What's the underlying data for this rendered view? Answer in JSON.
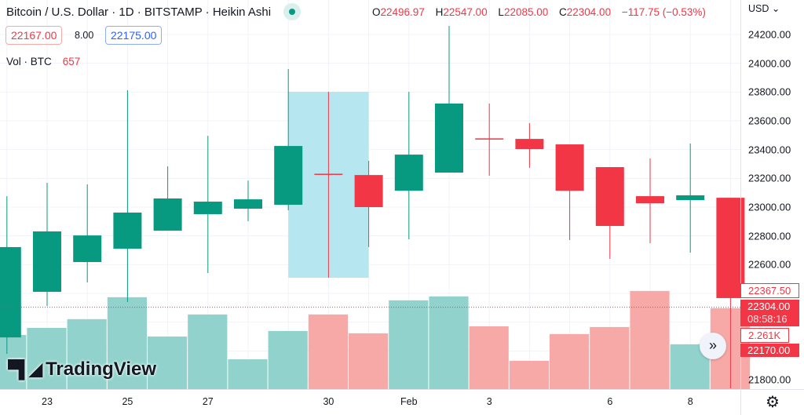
{
  "header": {
    "title": "Bitcoin / U.S. Dollar · 1D · BITSTAMP · Heikin Ashi",
    "ohlc": {
      "o_label": "O",
      "o": "22496.97",
      "h_label": "H",
      "h": "22547.00",
      "l_label": "L",
      "l": "22085.00",
      "c_label": "C",
      "c": "22304.00",
      "change": "−117.75 (−0.53%)"
    },
    "sell_price": "22167.00",
    "spread": "8.00",
    "buy_price": "22175.00",
    "volume_label": "Vol · BTC",
    "volume_value": "657",
    "currency": "USD"
  },
  "price_axis": {
    "ticks": [
      "24200.00",
      "24000.00",
      "23800.00",
      "23600.00",
      "23400.00",
      "23200.00",
      "23000.00",
      "22800.00",
      "22600.00",
      "21800.00"
    ],
    "tags": {
      "last_open": "22367.50",
      "last_price": "22304.00",
      "countdown": "08:58:16",
      "volume": "2.261K",
      "bid": "22170.00"
    }
  },
  "time_axis": {
    "ticks": [
      {
        "label": "23",
        "index": 1
      },
      {
        "label": "25",
        "index": 3
      },
      {
        "label": "27",
        "index": 5
      },
      {
        "label": "30",
        "index": 8
      },
      {
        "label": "Feb",
        "index": 10
      },
      {
        "label": "3",
        "index": 12
      },
      {
        "label": "6",
        "index": 15
      },
      {
        "label": "8",
        "index": 17
      }
    ]
  },
  "logo": "TradingView",
  "colors": {
    "up": "#089981",
    "down": "#f23645",
    "vol_up": "#92d2cc",
    "vol_down": "#f7a9a7",
    "highlight": "#b2e6f0",
    "grid": "#f0f3fa"
  },
  "chart_data": {
    "type": "candlestick",
    "price_range": [
      21700,
      24300
    ],
    "candles": [
      {
        "date": "Jan 22",
        "o": 22094,
        "h": 23076,
        "l": 21980,
        "c": 22722,
        "vol": 440
      },
      {
        "date": "Jan 23",
        "o": 22411,
        "h": 23169,
        "l": 22312,
        "c": 22831,
        "vol": 497
      },
      {
        "date": "Jan 24",
        "o": 22618,
        "h": 23158,
        "l": 22476,
        "c": 22803,
        "vol": 568
      },
      {
        "date": "Jan 25",
        "o": 22711,
        "h": 23813,
        "l": 22340,
        "c": 22962,
        "vol": 746
      },
      {
        "date": "Jan 26",
        "o": 22836,
        "h": 23283,
        "l": 22836,
        "c": 23060,
        "vol": 427
      },
      {
        "date": "Jan 27",
        "o": 22951,
        "h": 23496,
        "l": 22542,
        "c": 23038,
        "vol": 606
      },
      {
        "date": "Jan 28",
        "o": 22989,
        "h": 23185,
        "l": 22902,
        "c": 23054,
        "vol": 242
      },
      {
        "date": "Jan 29",
        "o": 23016,
        "h": 23960,
        "l": 22978,
        "c": 23425,
        "vol": 472
      },
      {
        "date": "Jan 30",
        "o": 23232,
        "h": 23802,
        "l": 22509,
        "c": 23226,
        "vol": 606
      },
      {
        "date": "Jan 31",
        "o": 23223,
        "h": 23322,
        "l": 22722,
        "c": 23000,
        "vol": 453
      },
      {
        "date": "Feb 1",
        "o": 23114,
        "h": 23802,
        "l": 22776,
        "c": 23365,
        "vol": 721
      },
      {
        "date": "Feb 2",
        "o": 23240,
        "h": 24260,
        "l": 23240,
        "c": 23720,
        "vol": 753
      },
      {
        "date": "Feb 3",
        "o": 23478,
        "h": 23720,
        "l": 23218,
        "c": 23470,
        "vol": 510
      },
      {
        "date": "Feb 4",
        "o": 23474,
        "h": 23584,
        "l": 23273,
        "c": 23403,
        "vol": 230
      },
      {
        "date": "Feb 5",
        "o": 23436,
        "h": 23436,
        "l": 22771,
        "c": 23114,
        "vol": 447
      },
      {
        "date": "Feb 6",
        "o": 23278,
        "h": 23278,
        "l": 22640,
        "c": 22869,
        "vol": 504
      },
      {
        "date": "Feb 7",
        "o": 23076,
        "h": 23338,
        "l": 22749,
        "c": 23027,
        "vol": 797
      },
      {
        "date": "Feb 8",
        "o": 23049,
        "h": 23442,
        "l": 22683,
        "c": 23082,
        "vol": 364
      },
      {
        "date": "Feb 9",
        "o": 23065,
        "h": 23065,
        "l": 21740,
        "c": 22367.5,
        "vol": 657
      }
    ],
    "highlight": {
      "from_date": "Jan 29",
      "to_date": "Jan 31",
      "price_high": 23802,
      "price_low": 22509
    },
    "last_price_line": 22304
  }
}
